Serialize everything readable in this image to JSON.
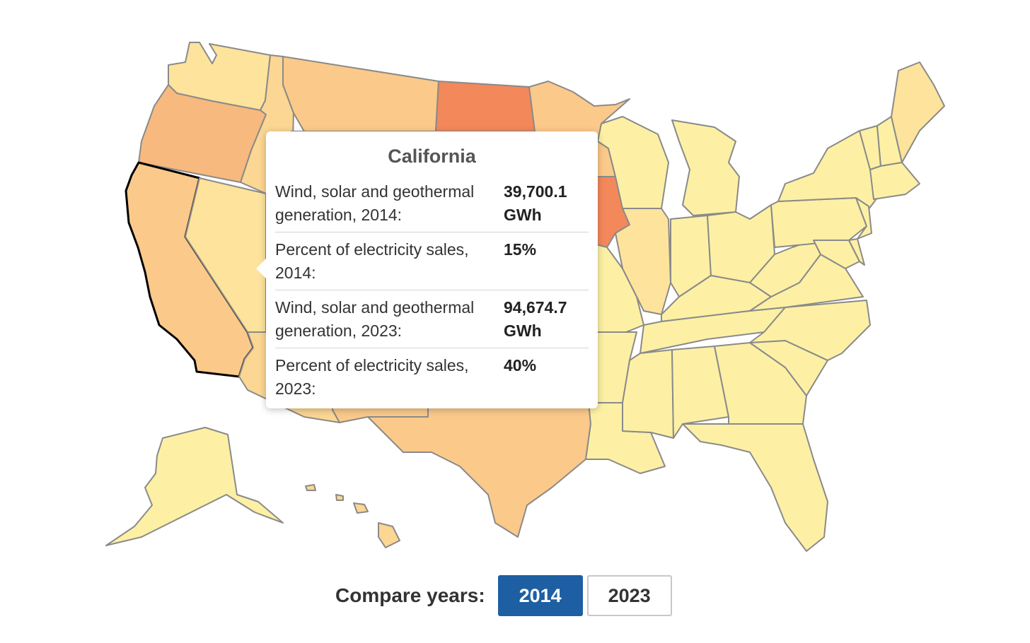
{
  "colors": {
    "lowest": "#fdf0a4",
    "low": "#fde39c",
    "mid_low": "#fcd693",
    "mid": "#fbc98a",
    "mid_high": "#f7b97e",
    "high": "#f3885b",
    "border": "#8a8a8a",
    "selected_border": "#000000",
    "active_button": "#1e5fa3"
  },
  "tooltip": {
    "state": "California",
    "rows": [
      {
        "label": "Wind, solar and geothermal generation, 2014:",
        "value": "39,700.1 GWh"
      },
      {
        "label": "Percent of electricity sales, 2014:",
        "value": "15%"
      },
      {
        "label": "Wind, solar and geothermal generation, 2023:",
        "value": "94,674.7 GWh"
      },
      {
        "label": "Percent of electricity sales, 2023:",
        "value": "40%"
      }
    ]
  },
  "compare": {
    "label": "Compare years:",
    "years": [
      {
        "label": "2014",
        "active": true
      },
      {
        "label": "2023",
        "active": false
      }
    ]
  },
  "map": {
    "selected_state": "California",
    "state_shading": {
      "Washington": "low",
      "Oregon": "mid_high",
      "California": "mid",
      "Idaho": "mid_low",
      "Nevada": "low",
      "Montana": "mid",
      "Wyoming": "mid",
      "Utah": "mid_low",
      "Arizona": "mid_low",
      "Colorado": "mid_low",
      "New Mexico": "mid",
      "North Dakota": "high",
      "South Dakota": "high",
      "Nebraska": "mid",
      "Kansas": "mid",
      "Oklahoma": "mid",
      "Texas": "mid",
      "Minnesota": "mid",
      "Iowa": "high",
      "Missouri": "lowest",
      "Arkansas": "lowest",
      "Louisiana": "lowest",
      "Wisconsin": "lowest",
      "Illinois": "low",
      "Michigan": "lowest",
      "Indiana": "lowest",
      "Ohio": "lowest",
      "Kentucky": "lowest",
      "Tennessee": "lowest",
      "Mississippi": "lowest",
      "Alabama": "lowest",
      "Georgia": "lowest",
      "Florida": "lowest",
      "South Carolina": "lowest",
      "North Carolina": "lowest",
      "Virginia": "lowest",
      "West Virginia": "lowest",
      "Pennsylvania": "lowest",
      "New York": "lowest",
      "Vermont": "lowest",
      "New Hampshire": "lowest",
      "Maine": "low",
      "Massachusetts": "lowest",
      "New Jersey": "lowest",
      "Maryland": "lowest",
      "Delaware": "lowest",
      "Alaska": "lowest",
      "Hawaii": "mid_low"
    }
  }
}
